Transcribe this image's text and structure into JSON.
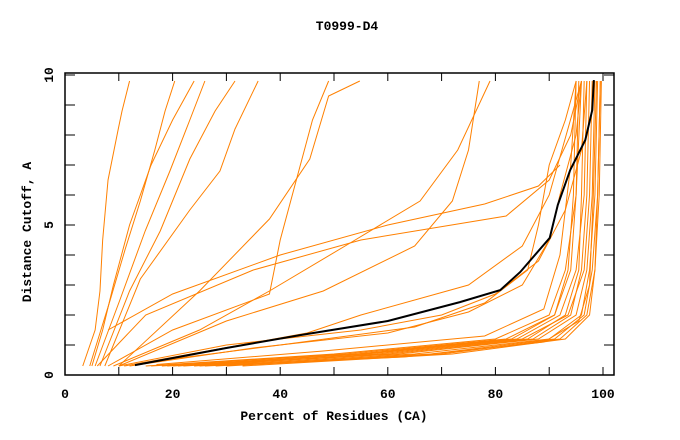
{
  "chart_data": {
    "type": "line",
    "title": "T0999-D4",
    "xlabel": "Percent of Residues (CA)",
    "ylabel": "Distance Cutoff, A",
    "xlim": [
      0,
      100
    ],
    "ylim": [
      0,
      10
    ],
    "x_ticks": [
      "0",
      "20",
      "40",
      "60",
      "80",
      "100"
    ],
    "y_ticks": [
      "0",
      "5",
      "10"
    ],
    "grid": false,
    "colors": {
      "models": "#ff8000",
      "highlight": "#000000"
    },
    "highlight": {
      "name": "highlighted model",
      "points": [
        [
          13,
          0.33
        ],
        [
          30,
          0.9
        ],
        [
          43.7,
          1.33
        ],
        [
          60,
          1.8
        ],
        [
          73.4,
          2.43
        ],
        [
          80.9,
          2.83
        ],
        [
          84.6,
          3.43
        ],
        [
          90.1,
          4.57
        ],
        [
          91.6,
          5.67
        ],
        [
          93.9,
          6.83
        ],
        [
          96.7,
          7.83
        ],
        [
          98,
          8.83
        ],
        [
          98.3,
          9.83
        ]
      ]
    },
    "series": [
      {
        "points": [
          [
            3.3,
            0.3
          ],
          [
            5.6,
            1.5
          ],
          [
            6.5,
            2.8
          ],
          [
            7,
            4.5
          ],
          [
            8,
            6.5
          ],
          [
            9.9,
            8.2
          ],
          [
            10.6,
            8.8
          ],
          [
            12,
            9.8
          ]
        ]
      },
      {
        "points": [
          [
            4.6,
            0.3
          ],
          [
            8.4,
            2.5
          ],
          [
            11.2,
            4.2
          ],
          [
            14,
            5.8
          ],
          [
            16.7,
            7.5
          ],
          [
            18.6,
            8.8
          ],
          [
            20.4,
            9.8
          ]
        ]
      },
      {
        "points": [
          [
            5.6,
            0.3
          ],
          [
            10.2,
            2.5
          ],
          [
            14.9,
            4.8
          ],
          [
            19.5,
            6.8
          ],
          [
            23.2,
            8.5
          ],
          [
            26,
            9.8
          ]
        ]
      },
      {
        "points": [
          [
            6.5,
            0.3
          ],
          [
            12,
            2.8
          ],
          [
            17.7,
            4.8
          ],
          [
            23.2,
            7.2
          ],
          [
            27.9,
            8.8
          ],
          [
            31.6,
            9.8
          ]
        ]
      },
      {
        "points": [
          [
            7.4,
            0.3
          ],
          [
            14,
            3.2
          ],
          [
            23.2,
            5.5
          ],
          [
            28.8,
            6.8
          ],
          [
            31.6,
            8.2
          ],
          [
            35.9,
            9.8
          ]
        ]
      },
      {
        "points": [
          [
            5,
            0.3
          ],
          [
            7,
            1.5
          ],
          [
            9,
            3
          ],
          [
            12,
            5
          ],
          [
            16,
            7
          ],
          [
            20,
            8.5
          ],
          [
            24,
            9.8
          ]
        ]
      },
      {
        "points": [
          [
            10,
            0.3
          ],
          [
            25,
            2.8
          ],
          [
            38,
            5.2
          ],
          [
            45.5,
            7.2
          ],
          [
            49,
            9.3
          ],
          [
            54.8,
            9.8
          ]
        ]
      },
      {
        "points": [
          [
            8,
            0.3
          ],
          [
            20,
            1.5
          ],
          [
            38,
            2.7
          ],
          [
            40,
            4.5
          ],
          [
            43,
            6.5
          ],
          [
            46,
            8.5
          ],
          [
            49,
            9.8
          ]
        ]
      },
      {
        "points": [
          [
            9,
            0.3
          ],
          [
            25,
            1.5
          ],
          [
            38,
            2.8
          ],
          [
            53,
            4.4
          ],
          [
            66,
            5.8
          ],
          [
            73,
            7.5
          ],
          [
            79,
            9.8
          ]
        ]
      },
      {
        "points": [
          [
            10,
            0.3
          ],
          [
            30,
            1.8
          ],
          [
            48,
            2.8
          ],
          [
            65,
            4.3
          ],
          [
            72,
            5.8
          ],
          [
            75,
            7.5
          ],
          [
            77,
            9.8
          ]
        ]
      },
      {
        "points": [
          [
            8,
            1.5
          ],
          [
            20,
            2.7
          ],
          [
            40,
            4
          ],
          [
            60,
            5
          ],
          [
            78,
            5.7
          ],
          [
            88,
            6.3
          ],
          [
            92,
            7
          ]
        ]
      },
      {
        "points": [
          [
            6,
            0.3
          ],
          [
            15,
            2
          ],
          [
            35,
            3.5
          ],
          [
            55,
            4.5
          ],
          [
            82,
            5.3
          ],
          [
            90,
            6.5
          ],
          [
            94,
            8
          ],
          [
            96,
            9.8
          ]
        ]
      },
      {
        "points": [
          [
            10,
            0.3
          ],
          [
            30,
            1
          ],
          [
            55,
            1.5
          ],
          [
            70,
            2
          ],
          [
            80,
            2.7
          ],
          [
            88,
            3.8
          ],
          [
            93,
            5.5
          ],
          [
            96,
            7.5
          ],
          [
            97,
            9.8
          ]
        ]
      },
      {
        "points": [
          [
            12,
            0.3
          ],
          [
            35,
            0.9
          ],
          [
            60,
            1.4
          ],
          [
            75,
            2.1
          ],
          [
            85,
            3
          ],
          [
            90,
            4.5
          ],
          [
            92,
            6
          ],
          [
            95,
            8
          ],
          [
            96,
            9.8
          ]
        ]
      },
      {
        "points": [
          [
            14,
            0.4
          ],
          [
            40,
            1
          ],
          [
            65,
            1.6
          ],
          [
            78,
            2.4
          ],
          [
            86,
            3.5
          ],
          [
            88,
            5
          ],
          [
            90,
            7
          ],
          [
            93,
            8.5
          ],
          [
            95,
            9.8
          ]
        ]
      },
      {
        "points": [
          [
            11,
            0.3
          ],
          [
            45,
            1.4
          ],
          [
            55,
            2
          ],
          [
            75,
            3
          ],
          [
            85,
            4.3
          ],
          [
            90,
            6
          ],
          [
            96,
            9.8
          ]
        ]
      },
      {
        "points": [
          [
            15,
            0.3
          ],
          [
            50,
            0.7
          ],
          [
            80,
            1.2
          ],
          [
            90,
            2
          ],
          [
            93,
            3.5
          ],
          [
            95,
            6
          ],
          [
            96,
            9.8
          ]
        ]
      },
      {
        "points": [
          [
            18,
            0.3
          ],
          [
            55,
            0.7
          ],
          [
            84,
            1.2
          ],
          [
            92,
            2
          ],
          [
            95,
            3.5
          ],
          [
            96.5,
            6
          ],
          [
            97,
            9.8
          ]
        ]
      },
      {
        "points": [
          [
            20,
            0.3
          ],
          [
            60,
            0.7
          ],
          [
            87,
            1.2
          ],
          [
            94,
            2
          ],
          [
            96,
            3.5
          ],
          [
            97,
            6
          ],
          [
            97.5,
            9.8
          ]
        ]
      },
      {
        "points": [
          [
            22,
            0.3
          ],
          [
            62,
            0.7
          ],
          [
            88,
            1.2
          ],
          [
            95,
            2
          ],
          [
            97,
            3.5
          ],
          [
            98,
            6
          ],
          [
            98.5,
            9.8
          ]
        ]
      },
      {
        "points": [
          [
            25,
            0.3
          ],
          [
            65,
            0.7
          ],
          [
            90,
            1.2
          ],
          [
            96,
            2
          ],
          [
            97.5,
            3.5
          ],
          [
            98.5,
            6
          ],
          [
            99,
            9.8
          ]
        ]
      },
      {
        "points": [
          [
            28,
            0.3
          ],
          [
            68,
            0.7
          ],
          [
            91,
            1.2
          ],
          [
            96.5,
            2
          ],
          [
            98,
            3.5
          ],
          [
            99,
            6
          ],
          [
            99.5,
            9.8
          ]
        ]
      },
      {
        "points": [
          [
            16,
            0.3
          ],
          [
            52,
            0.7
          ],
          [
            82,
            1.2
          ],
          [
            91,
            2
          ],
          [
            94,
            3.5
          ],
          [
            95,
            6
          ],
          [
            95.5,
            9.8
          ]
        ]
      },
      {
        "points": [
          [
            30,
            0.3
          ],
          [
            70,
            0.7
          ],
          [
            92,
            1.2
          ],
          [
            97,
            2
          ],
          [
            98.5,
            3.5
          ],
          [
            99,
            6
          ],
          [
            99.5,
            9.8
          ]
        ]
      },
      {
        "points": [
          [
            24,
            0.3
          ],
          [
            58,
            0.7
          ],
          [
            86,
            1.2
          ],
          [
            93,
            2
          ],
          [
            95.5,
            3.5
          ],
          [
            96,
            6
          ],
          [
            96.5,
            9.8
          ]
        ]
      },
      {
        "points": [
          [
            19,
            0.3
          ],
          [
            56,
            0.7
          ],
          [
            85,
            1.2
          ],
          [
            93.5,
            2
          ],
          [
            96.5,
            3.5
          ],
          [
            97.5,
            6
          ],
          [
            98,
            9.8
          ]
        ]
      },
      {
        "points": [
          [
            33,
            0.3
          ],
          [
            72,
            0.7
          ],
          [
            93,
            1.2
          ],
          [
            97.5,
            2
          ],
          [
            98.5,
            3.5
          ],
          [
            99.3,
            6
          ],
          [
            99.7,
            9.8
          ]
        ]
      },
      {
        "points": [
          [
            21,
            0.3
          ],
          [
            54,
            0.7
          ],
          [
            83,
            1.2
          ],
          [
            91,
            2
          ],
          [
            93.5,
            3.5
          ],
          [
            94.5,
            6
          ],
          [
            95,
            9.8
          ]
        ]
      },
      {
        "points": [
          [
            17,
            0.35
          ],
          [
            48,
            0.8
          ],
          [
            78,
            1.3
          ],
          [
            89,
            2.2
          ],
          [
            92,
            4
          ],
          [
            94,
            7
          ],
          [
            95,
            9.8
          ]
        ]
      },
      {
        "points": [
          [
            26,
            0.3
          ],
          [
            63,
            0.6
          ],
          [
            89,
            1.1
          ],
          [
            95.5,
            1.8
          ],
          [
            97.5,
            3
          ],
          [
            98.2,
            6
          ],
          [
            98.8,
            9.8
          ]
        ]
      }
    ]
  }
}
